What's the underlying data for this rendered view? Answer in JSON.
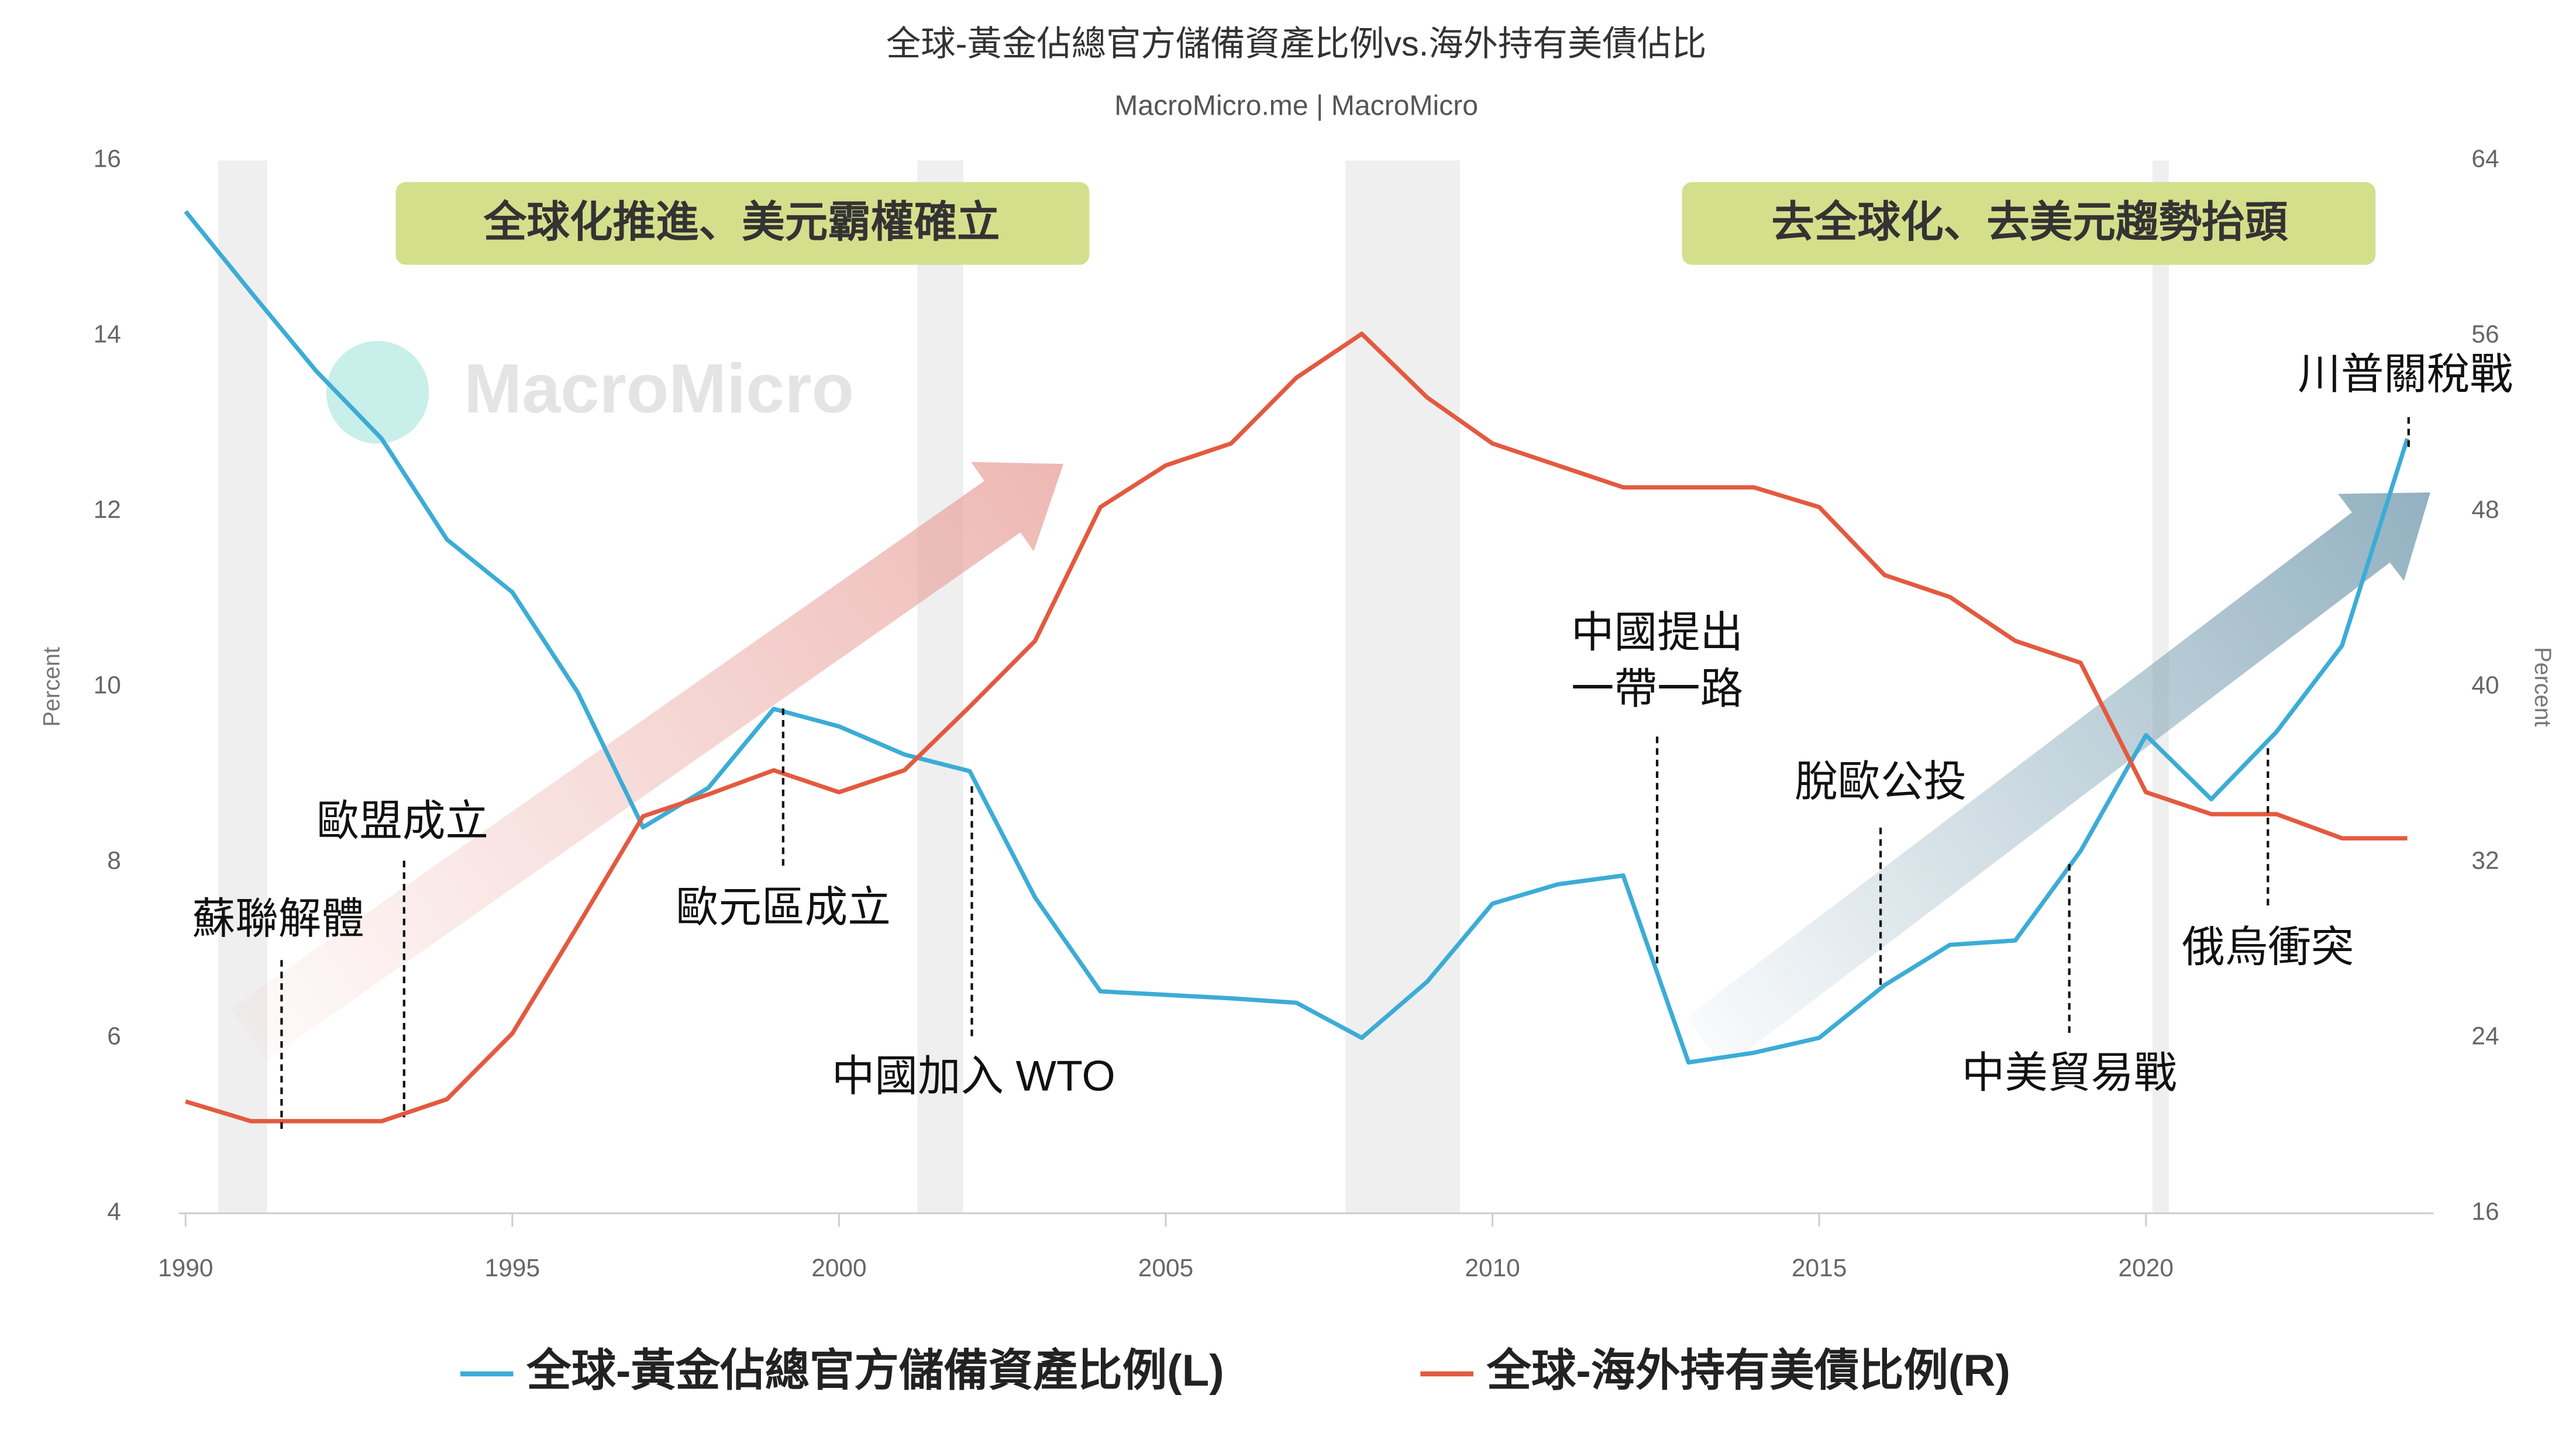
{
  "chart_data": {
    "type": "line",
    "title": "全球-黃金佔總官方儲備資產比例vs.海外持有美債佔比",
    "subtitle": "MacroMicro.me | MacroMicro",
    "watermark": "MacroMicro",
    "y_label": "Percent",
    "y2_label": "Percent",
    "x": [
      1990,
      1991,
      1992,
      1993,
      1994,
      1995,
      1996,
      1997,
      1998,
      1999,
      2000,
      2001,
      2002,
      2003,
      2004,
      2005,
      2006,
      2007,
      2008,
      2009,
      2010,
      2011,
      2012,
      2013,
      2014,
      2015,
      2016,
      2017,
      2018,
      2019,
      2020,
      2021,
      2022,
      2023,
      2024
    ],
    "xlim": [
      1990,
      2024.4
    ],
    "xticks": [
      1990,
      1995,
      2000,
      2005,
      2010,
      2015,
      2020
    ],
    "ylim": [
      4,
      16
    ],
    "yticks": [
      4,
      6,
      8,
      10,
      12,
      14,
      16
    ],
    "y2lim": [
      16,
      64
    ],
    "y2ticks": [
      16,
      24,
      32,
      40,
      48,
      56,
      64
    ],
    "shaded_periods": [
      [
        1990.5,
        1991.25
      ],
      [
        2001.2,
        2001.9
      ],
      [
        2007.75,
        2009.5
      ],
      [
        2020.1,
        2020.35
      ]
    ],
    "series": [
      {
        "name": "全球-黃金佔總官方儲備資產比例(L)",
        "color": "#3cacd6",
        "axis": "y",
        "values": [
          15.42,
          14.5,
          13.6,
          12.83,
          11.68,
          11.08,
          9.94,
          8.4,
          8.85,
          9.75,
          9.55,
          9.23,
          9.04,
          7.6,
          6.53,
          6.49,
          6.45,
          6.4,
          6.0,
          6.64,
          7.53,
          7.75,
          7.85,
          5.72,
          5.83,
          6.0,
          6.6,
          7.06,
          7.11,
          8.13,
          9.45,
          8.72,
          9.49,
          10.47,
          12.83
        ]
      },
      {
        "name": "全球-海外持有美債比例(R)",
        "color": "#e35a3f",
        "axis": "y2",
        "values": [
          21.1,
          20.2,
          20.2,
          20.2,
          21.2,
          24.2,
          29.1,
          34.1,
          35.1,
          36.2,
          35.2,
          36.2,
          39.1,
          42.1,
          48.2,
          50.1,
          51.1,
          54.1,
          56.1,
          53.2,
          51.1,
          50.1,
          49.1,
          49.1,
          49.1,
          48.2,
          45.1,
          44.1,
          42.1,
          41.1,
          35.2,
          34.2,
          34.2,
          33.1,
          33.1
        ]
      }
    ],
    "banners": [
      "全球化推進、美元霸權確立",
      "去全球化、去美元趨勢抬頭"
    ],
    "annotations": [
      [
        "蘇聯解體"
      ],
      [
        "歐盟成立"
      ],
      [
        "歐元區成立"
      ],
      [
        "中國加入 WTO"
      ],
      [
        "中國提出",
        "一帶一路"
      ],
      [
        "脫歐公投"
      ],
      [
        "中美貿易戰"
      ],
      [
        "俄烏衝突"
      ],
      [
        "川普關稅戰"
      ]
    ]
  }
}
